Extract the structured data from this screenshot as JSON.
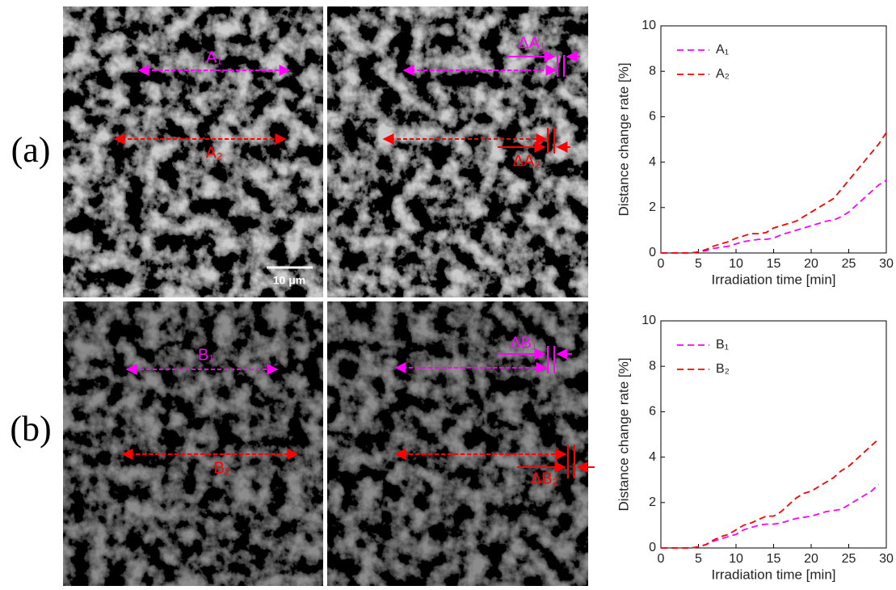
{
  "panels": [
    {
      "label": "(a)",
      "left": {
        "top": "A₁",
        "bottom": "A₂",
        "scale": "10 μm"
      },
      "right": {
        "top": "ΔA₁",
        "bottom": "ΔA₂"
      }
    },
    {
      "label": "(b)",
      "left": {
        "top": "B₁",
        "bottom": "B₂"
      },
      "right": {
        "top": "ΔB₁",
        "bottom": "ΔB₂"
      }
    }
  ],
  "chart_data": [
    {
      "type": "line",
      "xlabel": "Irradiation time [min]",
      "ylabel": "Distance change rate [%]",
      "x": [
        0,
        1,
        2,
        3,
        4,
        5,
        6,
        7,
        8,
        9,
        10,
        11,
        12,
        13,
        14,
        15,
        16,
        17,
        18,
        19,
        20,
        21,
        22,
        23,
        24,
        25,
        26,
        27,
        28,
        29,
        30
      ],
      "series": [
        {
          "name": "A₁",
          "color": "#ff00ff",
          "values": [
            0,
            0,
            0,
            0,
            0,
            0.05,
            0.1,
            0.2,
            0.25,
            0.3,
            0.4,
            0.5,
            0.55,
            0.6,
            0.6,
            0.65,
            0.8,
            0.9,
            1.0,
            1.1,
            1.2,
            1.3,
            1.4,
            1.45,
            1.6,
            1.8,
            2.1,
            2.4,
            2.7,
            3.0,
            3.2
          ]
        },
        {
          "name": "A₂",
          "color": "#ff0000",
          "values": [
            0,
            0,
            0,
            0,
            0,
            0.05,
            0.15,
            0.3,
            0.4,
            0.5,
            0.65,
            0.75,
            0.85,
            0.85,
            0.9,
            1.1,
            1.2,
            1.3,
            1.4,
            1.6,
            1.8,
            2.0,
            2.2,
            2.4,
            2.8,
            3.2,
            3.6,
            4.0,
            4.4,
            4.8,
            5.3
          ]
        }
      ],
      "xlim": [
        0,
        30
      ],
      "ylim": [
        0,
        10
      ],
      "xticks": [
        0,
        5,
        10,
        15,
        20,
        25,
        30
      ],
      "yticks": [
        0,
        2,
        4,
        6,
        8,
        10
      ],
      "legend": "upper left"
    },
    {
      "type": "line",
      "xlabel": "Irradiation time [min]",
      "ylabel": "Distance change rate [%]",
      "x": [
        0,
        1,
        2,
        3,
        4,
        5,
        6,
        7,
        8,
        9,
        10,
        11,
        12,
        13,
        14,
        15,
        16,
        17,
        18,
        19,
        20,
        21,
        22,
        23,
        24,
        25,
        26,
        27,
        28,
        29
      ],
      "series": [
        {
          "name": "B₁",
          "color": "#ff00ff",
          "values": [
            0,
            0,
            0,
            0,
            0,
            0.05,
            0.15,
            0.3,
            0.4,
            0.5,
            0.6,
            0.8,
            0.9,
            1.0,
            1.05,
            1.05,
            1.1,
            1.2,
            1.3,
            1.35,
            1.4,
            1.5,
            1.6,
            1.65,
            1.7,
            1.9,
            2.1,
            2.3,
            2.5,
            2.8
          ]
        },
        {
          "name": "B₂",
          "color": "#ff0000",
          "values": [
            0,
            0,
            0,
            0,
            0,
            0.05,
            0.15,
            0.35,
            0.5,
            0.6,
            0.8,
            1.0,
            1.1,
            1.25,
            1.4,
            1.4,
            1.6,
            1.9,
            2.2,
            2.4,
            2.5,
            2.7,
            2.9,
            3.1,
            3.4,
            3.6,
            3.9,
            4.2,
            4.5,
            4.8
          ]
        }
      ],
      "xlim": [
        0,
        30
      ],
      "ylim": [
        0,
        10
      ],
      "xticks": [
        0,
        5,
        10,
        15,
        20,
        25,
        30
      ],
      "yticks": [
        0,
        2,
        4,
        6,
        8,
        10
      ],
      "legend": "upper left"
    }
  ]
}
